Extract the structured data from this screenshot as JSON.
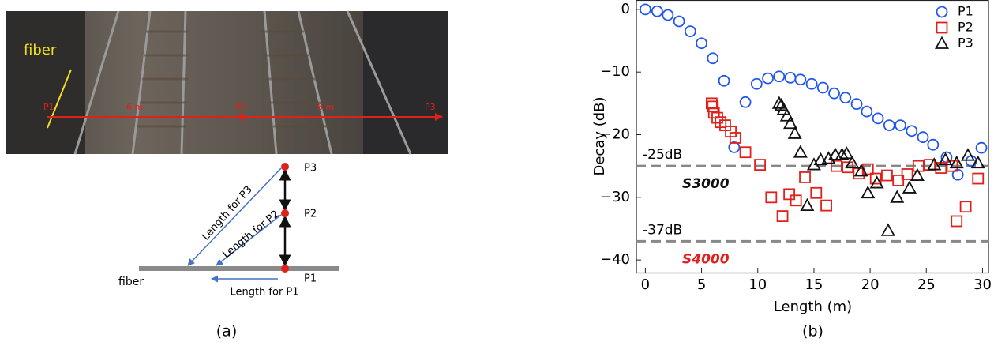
{
  "panel_a": {
    "photo_labels": {
      "fiber": "fiber",
      "p1": "P1",
      "d1": "6 m",
      "p2": "P2",
      "d2": "6 m",
      "p3": "P3"
    },
    "diagram": {
      "p3": "P3",
      "p2": "P2",
      "p1": "P1",
      "fiber": "fiber",
      "len_p3": "Length for P3",
      "len_p2": "Length for P2",
      "len_p1": "Length for P1"
    },
    "caption": "(a)"
  },
  "chart_data": {
    "type": "scatter",
    "caption": "(b)",
    "x_label": "Length (m)",
    "y_label": "Decay (dB)",
    "xlim": [
      -0.8,
      30.6
    ],
    "ylim": [
      -42,
      1.5
    ],
    "xticks": [
      0,
      5,
      10,
      15,
      20,
      25,
      30
    ],
    "yticks": [
      0,
      {
        "value": -10,
        "label": "−10"
      },
      {
        "value": -20,
        "label": "−20"
      },
      {
        "value": -30,
        "label": "−30"
      },
      {
        "value": -40,
        "label": "−40"
      }
    ],
    "grid": false,
    "legend": "upper right",
    "hlines": [
      {
        "value": -25,
        "label": "-25dB",
        "name": "S3000",
        "name_color": "#111111"
      },
      {
        "value": -37,
        "label": "-37dB",
        "name": "S4000",
        "name_color": "#e0201b"
      }
    ],
    "series": [
      {
        "name": "P1",
        "color": "#2255ee",
        "marker": "circle",
        "x": [
          0,
          1.05,
          2.0,
          3.0,
          4.0,
          5.0,
          6.0,
          7.0,
          7.9,
          8.9,
          9.9,
          10.9,
          11.9,
          12.9,
          13.8,
          14.8,
          15.8,
          16.8,
          17.8,
          18.8,
          19.7,
          20.7,
          21.7,
          22.7,
          23.7,
          24.7,
          25.6,
          26.8,
          27.8,
          29.0,
          29.9
        ],
        "values": [
          0,
          -0.3,
          -0.9,
          -1.9,
          -3.5,
          -5.4,
          -7.8,
          -11.4,
          -22,
          -14.8,
          -11.9,
          -11,
          -10.7,
          -10.9,
          -11.2,
          -11.9,
          -12.5,
          -13.4,
          -14.1,
          -15.1,
          -16.3,
          -17.4,
          -18.5,
          -18.5,
          -19.4,
          -20.4,
          -21.6,
          -23.6,
          -26.4,
          -24.2,
          -22.1
        ]
      },
      {
        "name": "P2",
        "color": "#e0201b",
        "marker": "square",
        "x": [
          5.9,
          6.0,
          6.1,
          6.4,
          6.7,
          7.1,
          7.6,
          8.0,
          8.9,
          10.2,
          11.2,
          12.2,
          12.8,
          13.4,
          14.2,
          15.2,
          16.1,
          17.0,
          18.0,
          19.0,
          19.8,
          20.5,
          21.5,
          22.5,
          23.3,
          24.3,
          25.3,
          26.3,
          27.3,
          27.7,
          28.5,
          29.6
        ],
        "values": [
          -15,
          -15.5,
          -16.5,
          -17.3,
          -18,
          -18.5,
          -19.5,
          -20.5,
          -22.8,
          -24.8,
          -30,
          -33,
          -29.5,
          -30.5,
          -26.8,
          -29.3,
          -31.3,
          -25,
          -25.2,
          -26.2,
          -25.5,
          -27,
          -26.5,
          -27.3,
          -26.3,
          -25,
          -24.8,
          -25.3,
          -25,
          -33.8,
          -31.5,
          -27
        ]
      },
      {
        "name": "P3",
        "color": "#111111",
        "marker": "triangle",
        "x": [
          11.9,
          12.1,
          12.3,
          12.6,
          12.9,
          13.3,
          13.8,
          14.4,
          15.0,
          15.6,
          16.3,
          16.9,
          17.5,
          17.9,
          18.4,
          19.2,
          19.8,
          20.6,
          21.6,
          22.4,
          23.5,
          24.2,
          25.7,
          26.7,
          27.7,
          28.7,
          29.6
        ],
        "values": [
          -15,
          -15.3,
          -16,
          -17,
          -18.2,
          -19.8,
          -22.8,
          -31.3,
          -24.8,
          -24,
          -23.8,
          -23.2,
          -23.2,
          -23,
          -24.5,
          -25.8,
          -29.3,
          -27.7,
          -35.3,
          -30,
          -28.5,
          -26.5,
          -24.8,
          -24,
          -24.5,
          -23.3,
          -24.5
        ]
      }
    ]
  }
}
